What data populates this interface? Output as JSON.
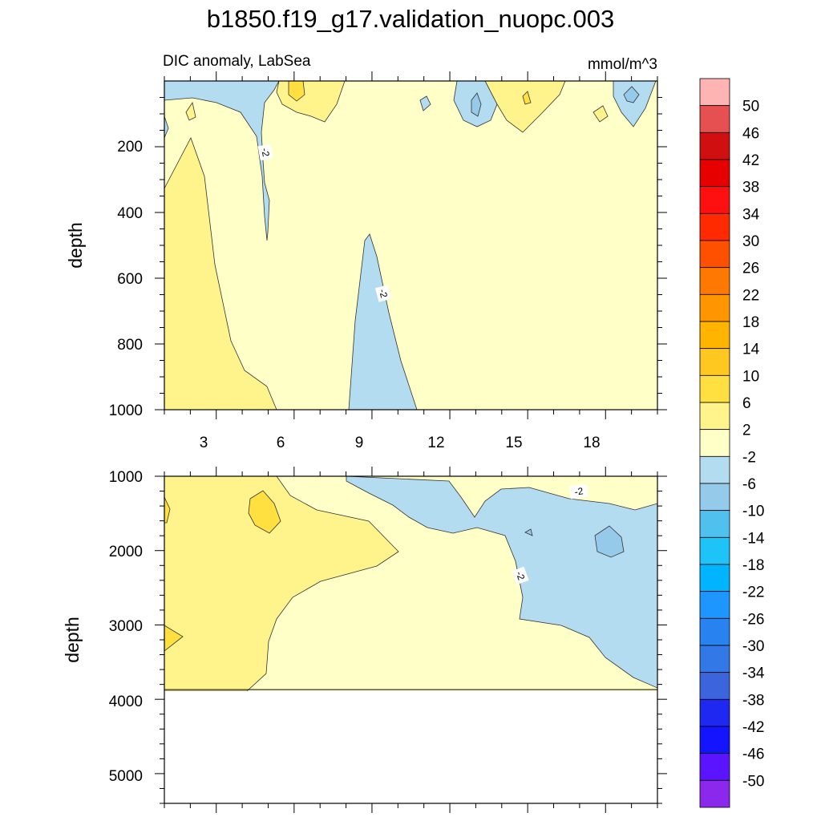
{
  "chart_data": {
    "type": "contour",
    "title": "b1850.f19_g17.validation_nuopc.003",
    "subtitle_left": "DIC anomaly, LabSea",
    "subtitle_right": "mmol/m^3",
    "x_range": [
      1,
      20
    ],
    "x_ticks": [
      "3",
      "6",
      "9",
      "12",
      "15",
      "18"
    ],
    "panels": [
      {
        "ylabel": "depth",
        "ylim": [
          0,
          1000
        ],
        "y_ticks": [
          "200",
          "400",
          "600",
          "800",
          "1000"
        ],
        "contour_labels": [
          "-2",
          "-2"
        ],
        "regions": [
          {
            "level": "2 to 6",
            "desc": "positive anomaly, west, lower depths"
          },
          {
            "level": "-6 to -2",
            "desc": "negative tongue near month 9-11, depth 470-1000"
          },
          {
            "level": "-6 to -2",
            "desc": "negative column near month 5.5, depth 0-460"
          },
          {
            "level": "-10 to -6",
            "desc": "small cores near surface, months 13.5 and 19.5"
          },
          {
            "level": "6 to 10",
            "desc": "small surface cores, month 6.5"
          }
        ]
      },
      {
        "ylabel": "depth",
        "ylim": [
          1000,
          5400
        ],
        "y_ticks": [
          "1000",
          "2000",
          "3000",
          "4000",
          "5000"
        ],
        "data_max_depth": 3870,
        "contour_labels": [
          "-2",
          "-2"
        ],
        "regions": [
          {
            "level": "2 to 6",
            "desc": "positive anomaly, west, 1000-3870"
          },
          {
            "level": "6 to 10",
            "desc": "cores near month 5.5 depth 1500 and month 1 depth 3100"
          },
          {
            "level": "-6 to -2",
            "desc": "negative anomaly east, months 9-20"
          },
          {
            "level": "-10 to -6",
            "desc": "core near month 18.5 depth 1800"
          }
        ]
      }
    ],
    "colorbar": {
      "labels": [
        "50",
        "46",
        "42",
        "38",
        "34",
        "30",
        "26",
        "22",
        "18",
        "14",
        "10",
        "6",
        "2",
        "-2",
        "-6",
        "-10",
        "-14",
        "-18",
        "-22",
        "-26",
        "-30",
        "-34",
        "-38",
        "-42",
        "-46",
        "-50"
      ],
      "colors": [
        "#ffb4b4",
        "#e65050",
        "#d01010",
        "#e60000",
        "#ff1010",
        "#ff2a00",
        "#ff5000",
        "#ff7800",
        "#ff9600",
        "#ffb400",
        "#ffc820",
        "#ffe040",
        "#fff48c",
        "#ffffc8",
        "#b4dcf0",
        "#96caea",
        "#50c0ee",
        "#1ec3f8",
        "#00b4ff",
        "#1e96ff",
        "#2882f0",
        "#3278e6",
        "#3c64dc",
        "#1e28f0",
        "#1414ff",
        "#5a14ff",
        "#8c28eb"
      ]
    }
  }
}
